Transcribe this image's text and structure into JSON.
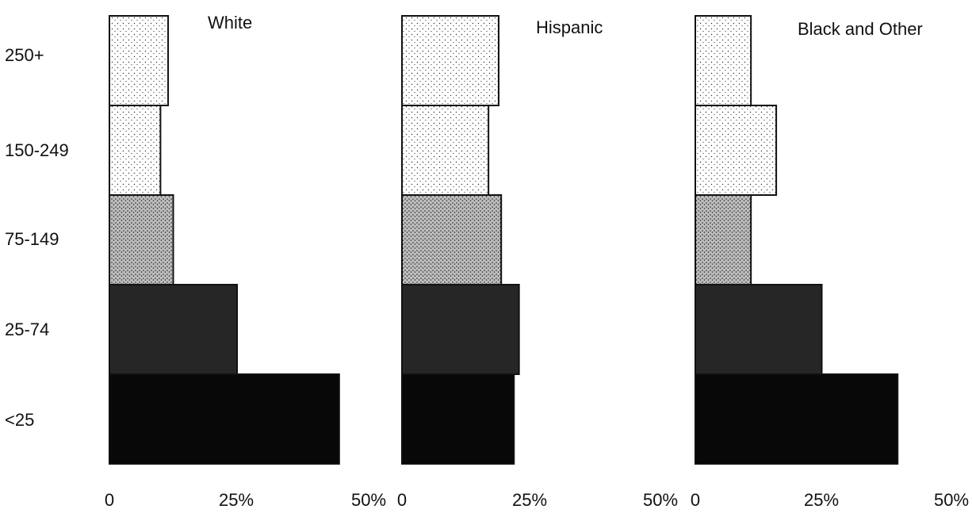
{
  "chart_data": {
    "type": "bar",
    "orientation": "horizontal",
    "categories": [
      "250+",
      "150-249",
      "75-149",
      "25-74",
      "<25"
    ],
    "xlim": [
      0,
      50
    ],
    "xticks": [
      "0",
      "25%",
      "50%"
    ],
    "grid": false,
    "panels": [
      {
        "title": "White",
        "values": [
          11.5,
          10,
          12.5,
          25,
          45
        ]
      },
      {
        "title": "Hispanic",
        "values": [
          19,
          17,
          19.5,
          23,
          22
        ]
      },
      {
        "title": "Black and Other",
        "values": [
          11,
          16,
          11,
          25,
          40
        ]
      }
    ],
    "colors": {
      "light": "#d9d9d9",
      "medium": "#9a9a9a",
      "dark": "#262626",
      "darkest": "#080808",
      "outline": "#111111"
    }
  }
}
